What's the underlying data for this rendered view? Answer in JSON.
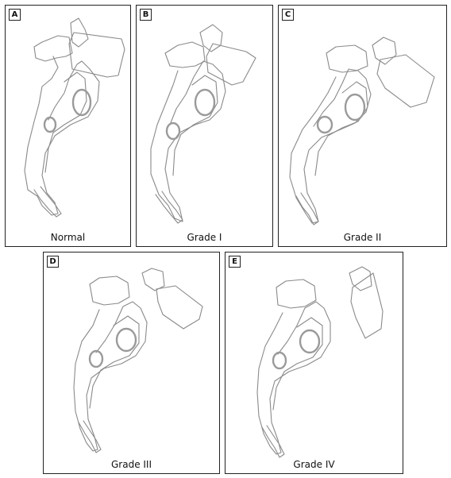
{
  "panels": [
    {
      "tag": "A",
      "caption": "Normal"
    },
    {
      "tag": "B",
      "caption": "Grade I"
    },
    {
      "tag": "C",
      "caption": "Grade II"
    },
    {
      "tag": "D",
      "caption": "Grade III"
    },
    {
      "tag": "E",
      "caption": "Grade IV"
    }
  ],
  "colors": {
    "line": "#8a8a8a",
    "border": "#222222"
  }
}
